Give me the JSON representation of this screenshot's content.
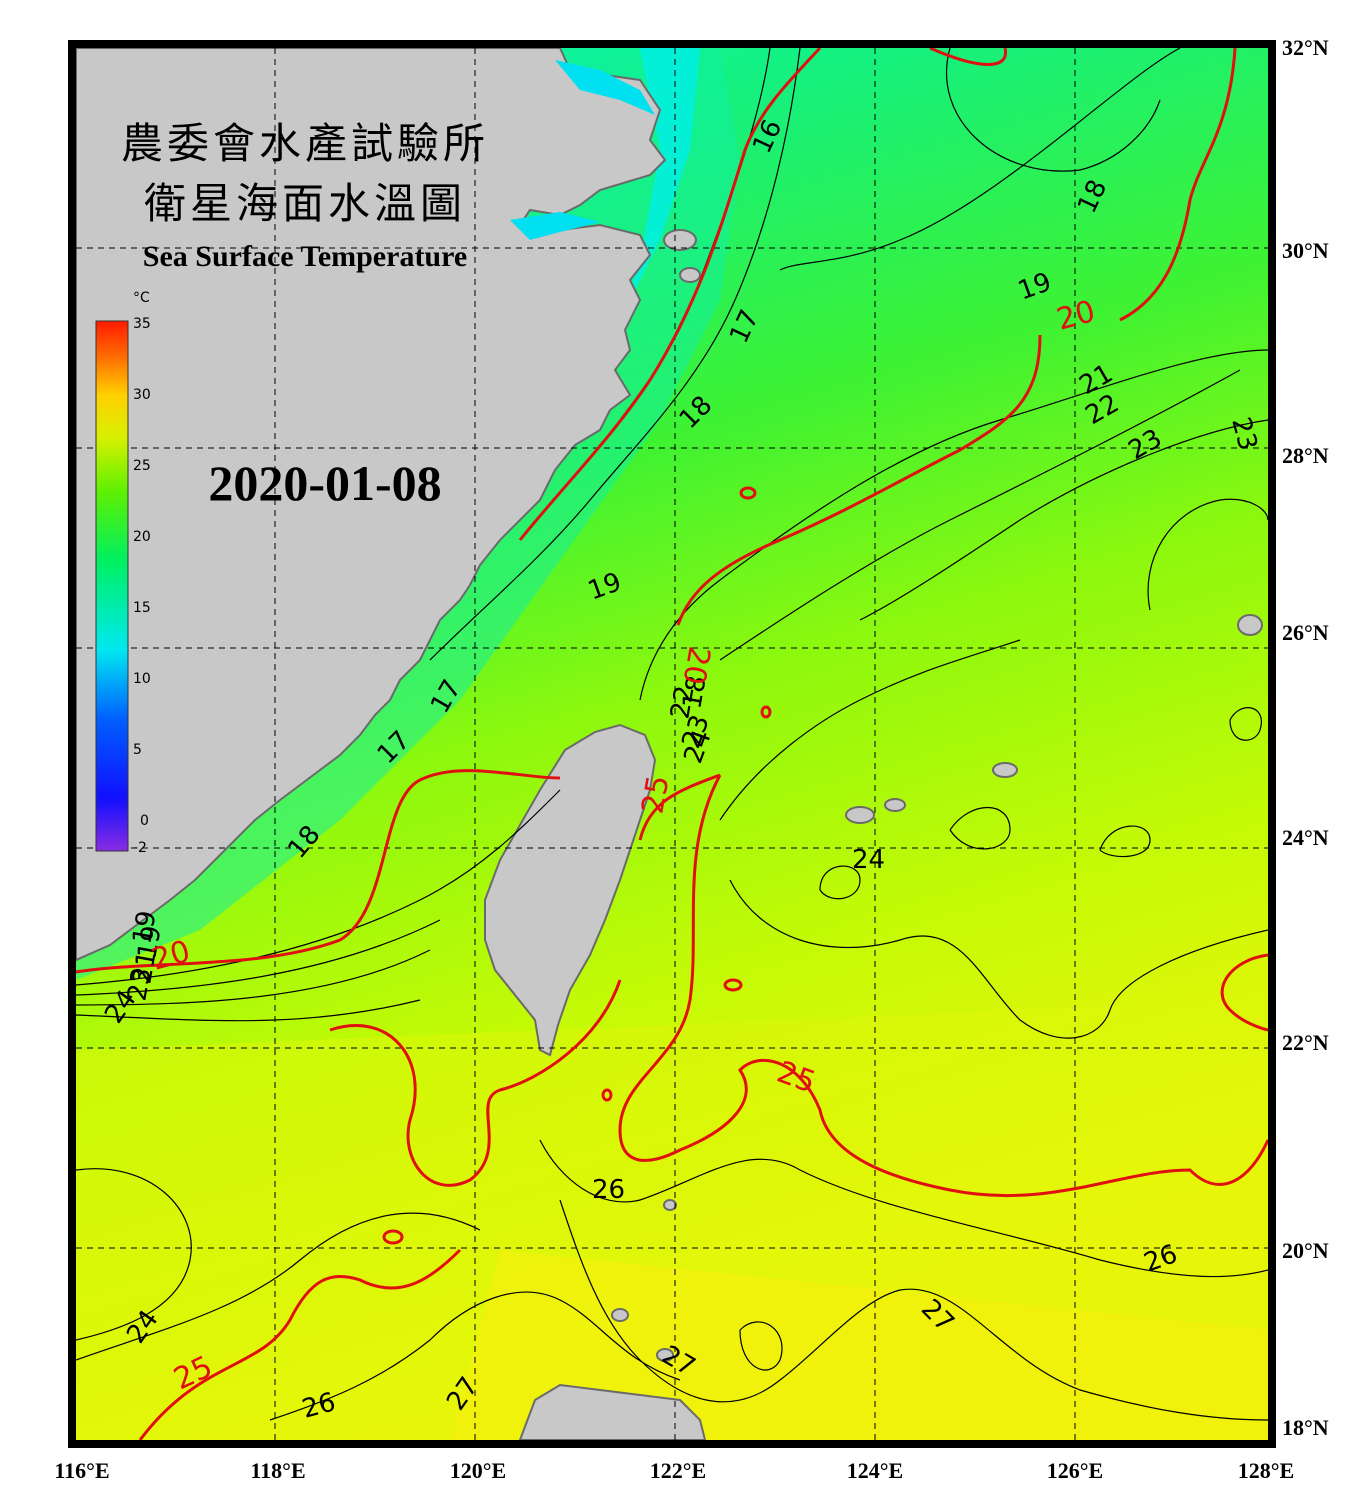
{
  "title_cn_line1": "農委會水產試驗所",
  "title_cn_line2": "衛星海面水溫圖",
  "title_en": "Sea Surface Temperature",
  "date": "2020-01-08",
  "colorbar": {
    "unit": "°C",
    "ticks": [
      "35",
      "30",
      "25",
      "20",
      "15",
      "10",
      "5",
      "0",
      "-2"
    ]
  },
  "axes": {
    "lon_labels": [
      "116°E",
      "118°E",
      "120°E",
      "122°E",
      "124°E",
      "126°E",
      "128°E"
    ],
    "lat_labels": [
      "32°N",
      "30°N",
      "28°N",
      "26°N",
      "24°N",
      "22°N",
      "20°N",
      "18°N"
    ]
  },
  "isotherm_labels": {
    "black": [
      "16",
      "17",
      "18",
      "19",
      "18",
      "17",
      "18",
      "19",
      "21",
      "22",
      "23",
      "23",
      "19",
      "17",
      "18",
      "22",
      "23",
      "24",
      "24",
      "26",
      "26",
      "24",
      "27",
      "27",
      "26",
      "27",
      "19",
      "21",
      "23",
      "24"
    ],
    "red": [
      "20",
      "20",
      "25",
      "25",
      "25",
      "20"
    ]
  },
  "colors": {
    "land": "#c8c8c8",
    "isotherm_major": "#e01010",
    "isotherm_minor": "#000000",
    "frame": "#000000"
  }
}
